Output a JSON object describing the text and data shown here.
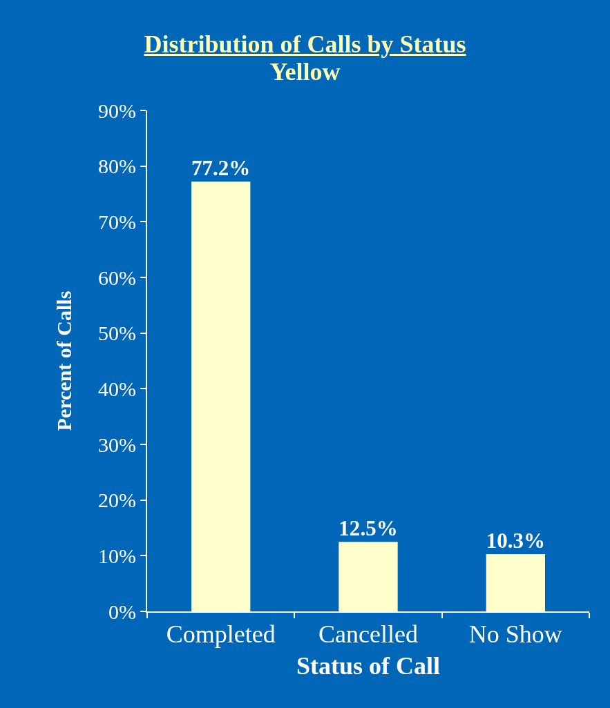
{
  "chart_data": {
    "type": "bar",
    "title": "Distribution of Calls by Status",
    "subtitle": "Yellow",
    "xlabel": "Status of Call",
    "ylabel": "Percent of Calls",
    "categories": [
      "Completed",
      "Cancelled",
      "No Show"
    ],
    "values": [
      77.2,
      12.5,
      10.3
    ],
    "color": "#ffffcc",
    "value_labels": [
      "77.2%",
      "12.5%",
      "10.3%"
    ],
    "ylim": [
      0,
      90
    ],
    "yticks": [
      {
        "value": 0,
        "label": "0%"
      },
      {
        "value": 10,
        "label": "10%"
      },
      {
        "value": 20,
        "label": "20%"
      },
      {
        "value": 30,
        "label": "30%"
      },
      {
        "value": 40,
        "label": "40%"
      },
      {
        "value": 50,
        "label": "50%"
      },
      {
        "value": 60,
        "label": "60%"
      },
      {
        "value": 70,
        "label": "70%"
      },
      {
        "value": 80,
        "label": "80%"
      },
      {
        "value": 90,
        "label": "90%"
      }
    ],
    "grid": false,
    "legend": false
  }
}
